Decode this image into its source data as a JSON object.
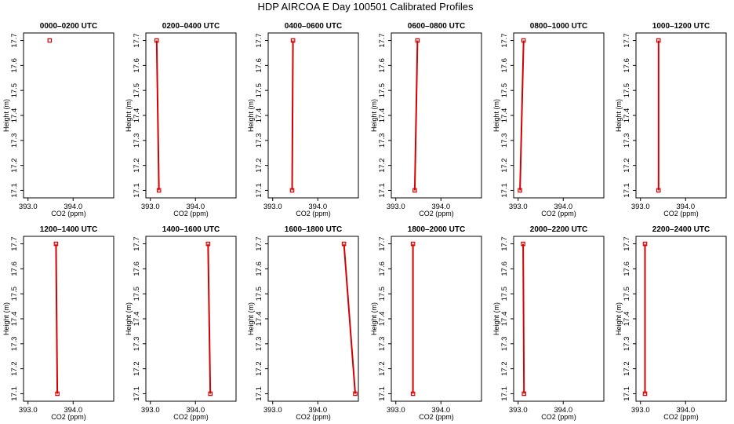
{
  "title": "HDP AIRCOA E  Day 100501  Calibrated Profiles",
  "colors": {
    "profile": "#d40000",
    "frame": "#000000"
  },
  "chart_data": {
    "type": "line",
    "layout": "small-multiples 2x6",
    "xlabel": "CO2 (ppm)",
    "ylabel": "Height (m)",
    "xlim": [
      392.9,
      394.9
    ],
    "ylim": [
      17.07,
      17.73
    ],
    "xticks": [
      393.0,
      394.0
    ],
    "xtick_labels": [
      "393.0",
      "394.0"
    ],
    "yticks": [
      17.1,
      17.2,
      17.3,
      17.4,
      17.5,
      17.6,
      17.7
    ],
    "ytick_labels": [
      "17.1",
      "17.2",
      "17.3",
      "17.4",
      "17.5",
      "17.6",
      "17.7"
    ],
    "grid": false,
    "panels": [
      {
        "title": "0000–0200 UTC",
        "points": [
          {
            "x": 393.48,
            "y": 17.7
          }
        ]
      },
      {
        "title": "0200–0400 UTC",
        "points": [
          {
            "x": 393.14,
            "y": 17.7
          },
          {
            "x": 393.19,
            "y": 17.1
          }
        ]
      },
      {
        "title": "0400–0600 UTC",
        "points": [
          {
            "x": 393.45,
            "y": 17.7
          },
          {
            "x": 393.43,
            "y": 17.1
          }
        ]
      },
      {
        "title": "0600–0800 UTC",
        "points": [
          {
            "x": 393.48,
            "y": 17.7
          },
          {
            "x": 393.42,
            "y": 17.1
          }
        ]
      },
      {
        "title": "0800–1000 UTC",
        "points": [
          {
            "x": 393.12,
            "y": 17.7
          },
          {
            "x": 393.04,
            "y": 17.1
          }
        ]
      },
      {
        "title": "1000–1200 UTC",
        "points": [
          {
            "x": 393.4,
            "y": 17.7
          },
          {
            "x": 393.4,
            "y": 17.1
          }
        ]
      },
      {
        "title": "1200–1400 UTC",
        "points": [
          {
            "x": 393.62,
            "y": 17.7
          },
          {
            "x": 393.65,
            "y": 17.1
          }
        ]
      },
      {
        "title": "1400–1600 UTC",
        "points": [
          {
            "x": 394.28,
            "y": 17.7
          },
          {
            "x": 394.33,
            "y": 17.1
          }
        ]
      },
      {
        "title": "1600–1800 UTC",
        "points": [
          {
            "x": 394.58,
            "y": 17.7
          },
          {
            "x": 394.83,
            "y": 17.1
          }
        ]
      },
      {
        "title": "1800–2000 UTC",
        "points": [
          {
            "x": 393.38,
            "y": 17.7
          },
          {
            "x": 393.38,
            "y": 17.1
          }
        ]
      },
      {
        "title": "2000–2200 UTC",
        "points": [
          {
            "x": 393.11,
            "y": 17.7
          },
          {
            "x": 393.13,
            "y": 17.1
          }
        ]
      },
      {
        "title": "2200–2400 UTC",
        "points": [
          {
            "x": 393.1,
            "y": 17.7
          },
          {
            "x": 393.1,
            "y": 17.1
          }
        ]
      }
    ]
  }
}
